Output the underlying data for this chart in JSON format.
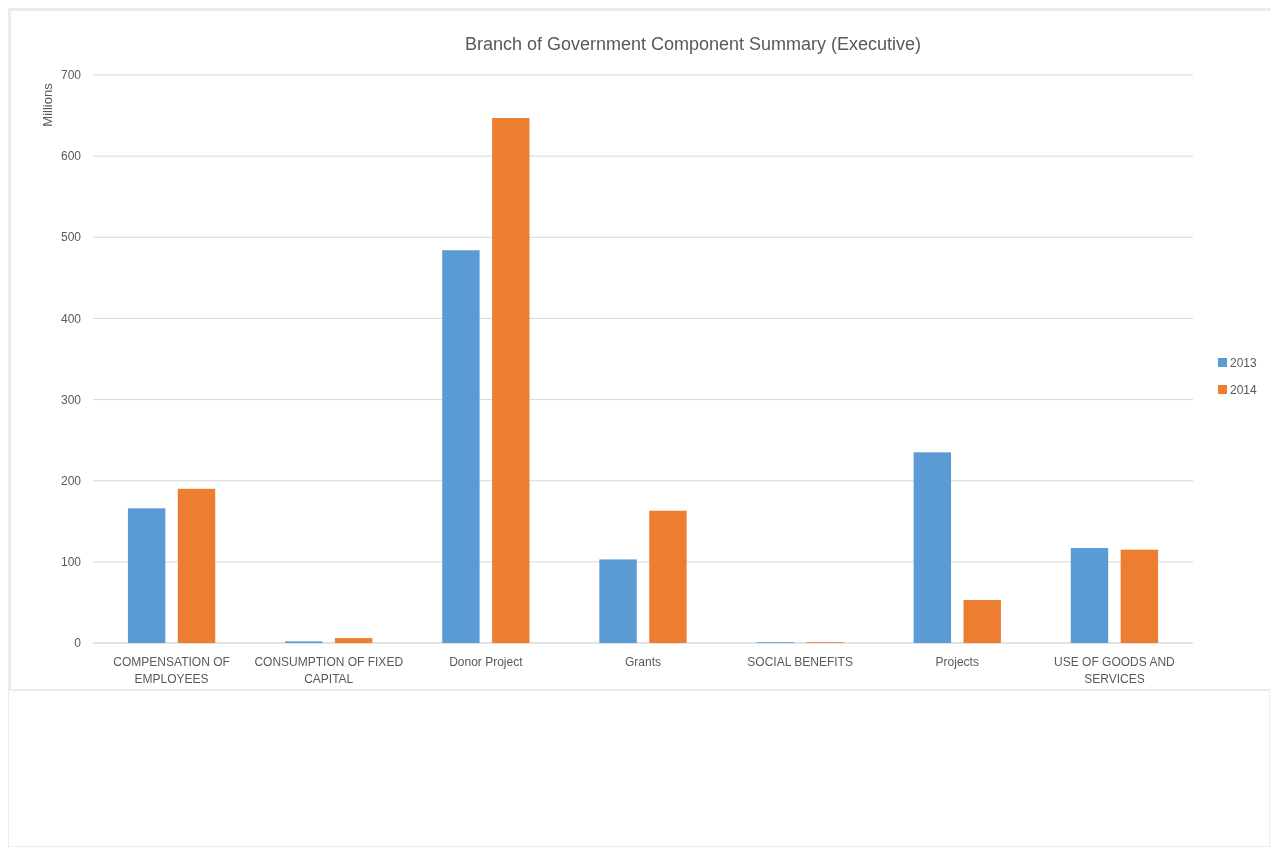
{
  "chart_data": {
    "type": "bar",
    "title": "Branch of Government Component Summary (Executive)",
    "ylabel": "Millions",
    "categories": [
      "COMPENSATION OF EMPLOYEES",
      "CONSUMPTION OF FIXED CAPITAL",
      "Donor Project",
      "Grants",
      "SOCIAL BENEFITS",
      "Projects",
      "USE OF GOODS AND SERVICES"
    ],
    "series": [
      {
        "name": "2013",
        "color": "#5b9bd5",
        "values": [
          166,
          2,
          484,
          103,
          1,
          235,
          117
        ]
      },
      {
        "name": "2014",
        "color": "#ed7d31",
        "values": [
          190,
          6,
          647,
          163,
          1,
          53,
          115
        ]
      }
    ],
    "ylim": [
      0,
      700
    ],
    "yticks": [
      0,
      100,
      200,
      300,
      400,
      500,
      600,
      700
    ],
    "grid": "y",
    "legend": "right"
  }
}
